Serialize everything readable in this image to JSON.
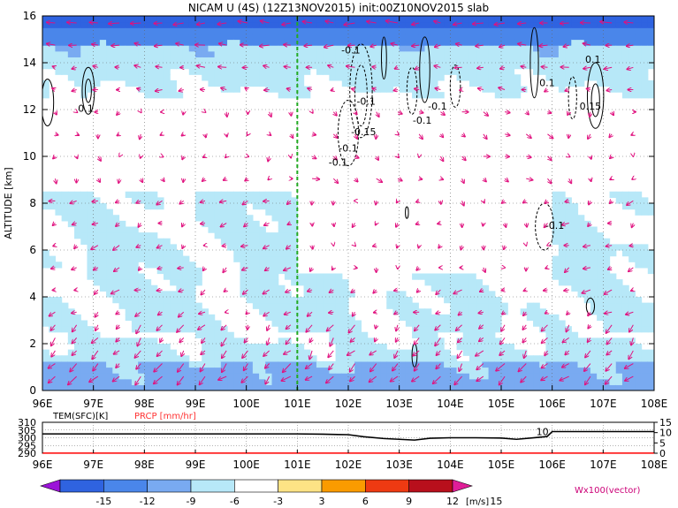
{
  "chart_data": [
    {
      "type": "heatmap",
      "title": "NICAM U (4S) (12Z13NOV2015) init:00Z10NOV2015 slab",
      "xlabel": "",
      "ylabel": "ALTITUDE [km]",
      "xlim": [
        96,
        108
      ],
      "ylim": [
        0,
        16
      ],
      "x_ticks": [
        "96E",
        "97E",
        "98E",
        "99E",
        "100E",
        "101E",
        "102E",
        "103E",
        "104E",
        "105E",
        "106E",
        "107E",
        "108E"
      ],
      "y_ticks": [
        "0",
        "2",
        "4",
        "6",
        "8",
        "10",
        "12",
        "14",
        "16"
      ],
      "grid": true,
      "reference_line_x": 101,
      "contour_labels": [
        {
          "x": 96.85,
          "y": 11.9,
          "text": "0.1"
        },
        {
          "x": 102.05,
          "y": 14.4,
          "text": "-0.1"
        },
        {
          "x": 102.35,
          "y": 12.2,
          "text": "-0.1"
        },
        {
          "x": 102.3,
          "y": 10.9,
          "text": "-0.15"
        },
        {
          "x": 102.0,
          "y": 10.2,
          "text": "-0.1"
        },
        {
          "x": 101.8,
          "y": 9.6,
          "text": "-0.1"
        },
        {
          "x": 103.75,
          "y": 12.0,
          "text": "-0.1"
        },
        {
          "x": 103.45,
          "y": 11.4,
          "text": "-0.1"
        },
        {
          "x": 105.9,
          "y": 13.0,
          "text": "0.1"
        },
        {
          "x": 106.8,
          "y": 14.0,
          "text": "0.1"
        },
        {
          "x": 106.75,
          "y": 12.0,
          "text": "0.15"
        },
        {
          "x": 106.05,
          "y": 6.9,
          "text": "-0.1"
        }
      ],
      "vector_label": "Wx100(vector)"
    },
    {
      "type": "line",
      "legend": [
        "TEM(SFC)[K]",
        "PRCP [mm/hr]"
      ],
      "xlim": [
        96,
        108
      ],
      "x_ticks": [
        "96E",
        "97E",
        "98E",
        "99E",
        "100E",
        "101E",
        "102E",
        "103E",
        "104E",
        "105E",
        "106E",
        "107E",
        "108E"
      ],
      "left_axis": {
        "ylim": [
          290,
          310
        ],
        "ticks": [
          "290",
          "295",
          "300",
          "305",
          "310"
        ]
      },
      "right_axis": {
        "ylim": [
          0,
          15
        ],
        "ticks": [
          "0",
          "5",
          "10",
          "15"
        ]
      },
      "series": [
        {
          "name": "TEM(SFC)[K]",
          "color": "#000000",
          "x": [
            96,
            97,
            98,
            99,
            100,
            100.5,
            101,
            101.5,
            102,
            102.3,
            102.7,
            103,
            103.3,
            103.6,
            104,
            104.5,
            105,
            105.3,
            105.7,
            105.9,
            106,
            107,
            108
          ],
          "values": [
            302.5,
            302.5,
            302.5,
            302.5,
            302.5,
            302.5,
            302.5,
            302.3,
            302.0,
            300.7,
            299.5,
            299.0,
            298.5,
            299.7,
            300.0,
            300.0,
            299.8,
            299.0,
            300.2,
            300.8,
            304.0,
            304.0,
            304.0
          ]
        },
        {
          "name": "PRCP [mm/hr]",
          "color": "#ff0000",
          "x": [
            96,
            97,
            98,
            99,
            100,
            101,
            102,
            103,
            104,
            105,
            106,
            107,
            108
          ],
          "values": [
            0.05,
            0.05,
            0.05,
            0.05,
            0.05,
            0.05,
            0.05,
            0.05,
            0.05,
            0.05,
            0.05,
            0.05,
            0.05
          ]
        }
      ],
      "annotations": [
        {
          "x": 106.0,
          "y": 304.0,
          "text": "10"
        }
      ]
    },
    {
      "type": "colorbar",
      "levels": [
        "-15",
        "-12",
        "-9",
        "-6",
        "-3",
        "3",
        "6",
        "9",
        "12",
        "15"
      ],
      "unit": "[m/s]",
      "colors": [
        "#9b14d8",
        "#2f63e0",
        "#4a86ea",
        "#79aaf1",
        "#b7e8f8",
        "#ffffff",
        "#fde385",
        "#fa9b00",
        "#ee3a12",
        "#b80f1c",
        "#e01e98"
      ]
    }
  ]
}
